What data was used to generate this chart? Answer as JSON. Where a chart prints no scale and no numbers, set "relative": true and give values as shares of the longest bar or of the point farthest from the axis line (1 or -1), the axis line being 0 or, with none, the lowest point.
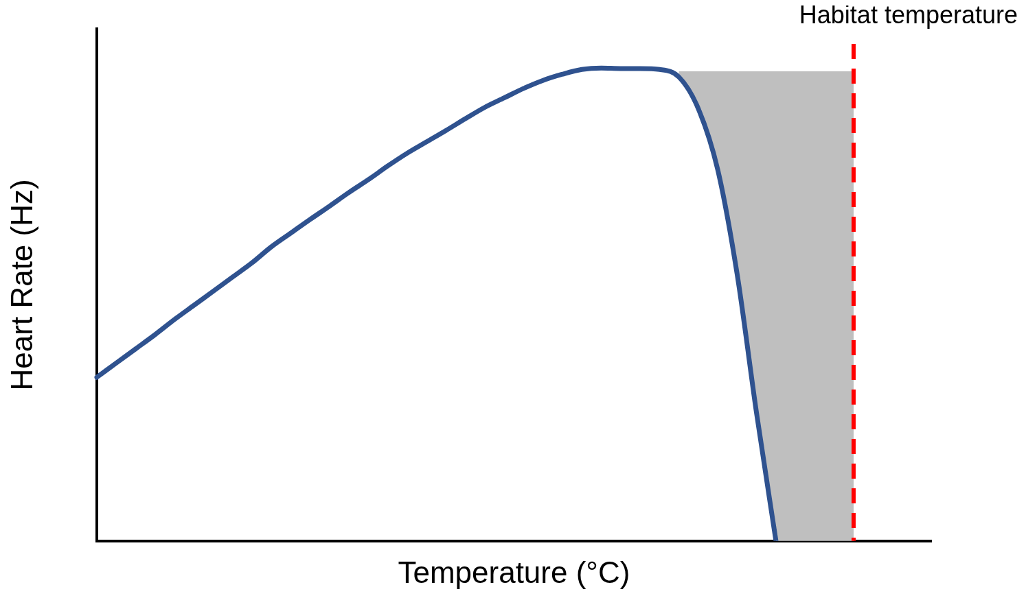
{
  "chart_data": {
    "type": "line",
    "relative": true,
    "xlabel": "Temperature (°C)",
    "ylabel": "Heart Rate (Hz)",
    "grid": false,
    "legend": false,
    "marker": "none",
    "categories": [
      null,
      null,
      null,
      null,
      null,
      null,
      null,
      null,
      null,
      null,
      null,
      null,
      null,
      null,
      null,
      null,
      null,
      null,
      null,
      null,
      null,
      null,
      null,
      null,
      null,
      null,
      null,
      null,
      null,
      null,
      null,
      null,
      null,
      null,
      null,
      null,
      null,
      null,
      null,
      null,
      null,
      null,
      null,
      null
    ],
    "series": [
      {
        "type": "area",
        "color": "#bfbfbf",
        "values": [
          null,
          null,
          null,
          null,
          null,
          null,
          null,
          null,
          null,
          null,
          null,
          null,
          null,
          null,
          null,
          null,
          null,
          null,
          null,
          null,
          null,
          null,
          null,
          null,
          null,
          null,
          null,
          null,
          null,
          null,
          0.993,
          0.993,
          0.993,
          0.993,
          0.993,
          0.993,
          0.993,
          0.993,
          0.993,
          0.993,
          null,
          null,
          null,
          null
        ]
      },
      {
        "color": "#2f528f",
        "values": [
          0.346,
          0.376,
          0.406,
          0.436,
          0.468,
          0.498,
          0.528,
          0.558,
          0.588,
          0.622,
          0.651,
          0.68,
          0.708,
          0.737,
          0.764,
          0.793,
          0.82,
          0.844,
          0.868,
          0.893,
          0.917,
          0.937,
          0.957,
          0.974,
          0.987,
          0.997,
          1,
          0.999,
          0.999,
          0.997,
          0.981,
          0.914,
          0.785,
          0.564,
          0.27,
          0,
          null,
          null,
          null,
          null,
          null,
          null,
          null,
          null
        ]
      }
    ],
    "annotations": [
      "Habitat temperature"
    ]
  }
}
